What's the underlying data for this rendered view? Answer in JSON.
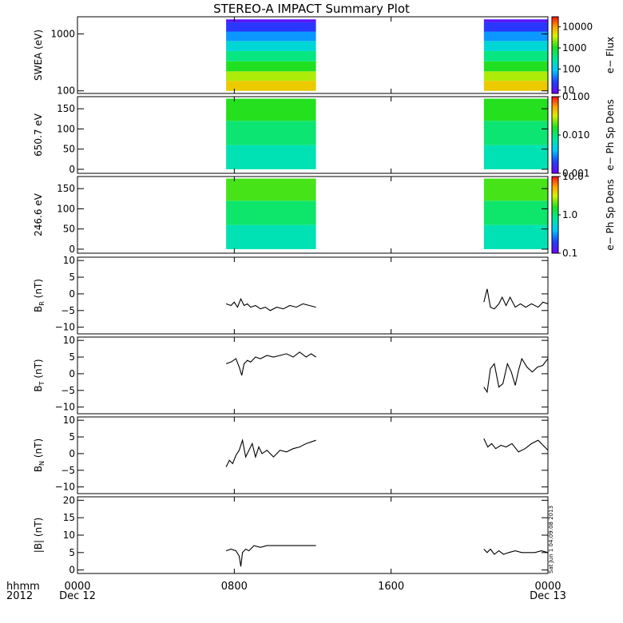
{
  "title": "STEREO-A IMPACT Summary Plot",
  "x_axis": {
    "row_label": "hhmm",
    "year_label": "2012",
    "ticks": [
      {
        "value": 0,
        "label": "0000",
        "sub": "Dec 12"
      },
      {
        "value": 480,
        "label": "0800",
        "sub": ""
      },
      {
        "value": 960,
        "label": "1600",
        "sub": ""
      },
      {
        "value": 1440,
        "label": "0000",
        "sub": "Dec 13"
      }
    ],
    "range_minutes": [
      0,
      1440
    ]
  },
  "timestamp": "Sat Jun  1 04:09:08 2013",
  "data_gaps_minutes": [
    [
      0,
      455
    ],
    [
      730,
      1244
    ]
  ],
  "chart_data": [
    {
      "type": "heatmap",
      "ylabel": "SWEA (eV)",
      "ylim": [
        90,
        2000
      ],
      "yscale": "log",
      "yticks": [
        100,
        1000
      ],
      "ytick_labels": [
        "100",
        "1000"
      ],
      "colorbar": {
        "label": "e− Flux",
        "scale": "log",
        "range": [
          7,
          30000
        ],
        "ticks": [
          10,
          100,
          1000,
          10000
        ],
        "tick_labels": [
          "10",
          "100",
          "1000",
          "10000"
        ]
      },
      "data_intervals_minutes": [
        [
          455,
          730
        ],
        [
          1244,
          1440
        ]
      ],
      "energy_bands_ev": [
        100,
        150,
        220,
        330,
        500,
        750,
        1100,
        1600,
        1800
      ],
      "flux_by_band": [
        8000,
        4000,
        1500,
        600,
        220,
        80,
        30,
        12,
        8
      ]
    },
    {
      "type": "heatmap",
      "ylabel": "650.7 eV",
      "ylim": [
        -10,
        180
      ],
      "yticks": [
        0,
        50,
        100,
        150
      ],
      "ytick_labels": [
        "0",
        "50",
        "100",
        "150"
      ],
      "colorbar": {
        "label": "e− Ph Sp Dens",
        "scale": "log",
        "range": [
          0.001,
          0.1
        ],
        "ticks": [
          0.001,
          0.01,
          0.1
        ],
        "tick_labels": [
          "0.001",
          "0.010",
          "0.100"
        ]
      },
      "data_intervals_minutes": [
        [
          455,
          730
        ],
        [
          1244,
          1440
        ]
      ],
      "pitch_profile": [
        {
          "pitch": 0,
          "value": 0.006
        },
        {
          "pitch": 60,
          "value": 0.008
        },
        {
          "pitch": 120,
          "value": 0.013
        },
        {
          "pitch": 175,
          "value": 0.02
        }
      ]
    },
    {
      "type": "heatmap",
      "ylabel": "246.6 eV",
      "ylim": [
        -10,
        180
      ],
      "yticks": [
        0,
        50,
        100,
        150
      ],
      "ytick_labels": [
        "0",
        "50",
        "100",
        "150"
      ],
      "colorbar": {
        "label": "e− Ph Sp Dens",
        "scale": "log",
        "range": [
          0.1,
          10
        ],
        "ticks": [
          0.1,
          1,
          10
        ],
        "tick_labels": [
          "0.1",
          "1.0",
          "10.0"
        ]
      },
      "data_intervals_minutes": [
        [
          455,
          730
        ],
        [
          1244,
          1440
        ]
      ],
      "pitch_profile": [
        {
          "pitch": 0,
          "value": 0.6
        },
        {
          "pitch": 60,
          "value": 0.8
        },
        {
          "pitch": 120,
          "value": 1.4
        },
        {
          "pitch": 175,
          "value": 2.4
        }
      ]
    },
    {
      "type": "line",
      "ylabel": "B",
      "ylabel_sub": "R",
      "ylabel_unit": " (nT)",
      "ylim": [
        -12,
        11
      ],
      "yticks": [
        -10,
        -5,
        0,
        5,
        10
      ],
      "ytick_labels": [
        "−10",
        "−5",
        "0",
        "5",
        "10"
      ],
      "segments": [
        {
          "x": [
            455,
            470,
            480,
            490,
            500,
            510,
            520,
            530,
            545,
            560,
            575,
            590,
            610,
            630,
            650,
            670,
            690,
            710,
            730
          ],
          "y": [
            -3,
            -3.5,
            -2.5,
            -4,
            -1.5,
            -3.5,
            -3,
            -4,
            -3.5,
            -4.5,
            -4,
            -5,
            -4,
            -4.5,
            -3.5,
            -4,
            -3,
            -3.5,
            -4
          ]
        },
        {
          "x": [
            1244,
            1254,
            1264,
            1276,
            1290,
            1300,
            1312,
            1324,
            1340,
            1356,
            1372,
            1390,
            1410,
            1425,
            1440
          ],
          "y": [
            -2.5,
            1.5,
            -4,
            -4.5,
            -3,
            -1,
            -3.5,
            -1,
            -4,
            -3,
            -4,
            -3,
            -4,
            -2.5,
            -3
          ]
        }
      ]
    },
    {
      "type": "line",
      "ylabel": "B",
      "ylabel_sub": "T",
      "ylabel_unit": " (nT)",
      "ylim": [
        -12,
        11
      ],
      "yticks": [
        -10,
        -5,
        0,
        5,
        10
      ],
      "ytick_labels": [
        "−10",
        "−5",
        "0",
        "5",
        "10"
      ],
      "segments": [
        {
          "x": [
            455,
            470,
            485,
            495,
            503,
            510,
            520,
            530,
            545,
            560,
            580,
            600,
            620,
            640,
            660,
            680,
            700,
            715,
            730
          ],
          "y": [
            3,
            3.5,
            4.5,
            2,
            -0.5,
            3,
            4,
            3.5,
            5,
            4.5,
            5.5,
            5,
            5.5,
            6,
            5,
            6.5,
            5,
            6,
            5
          ]
        },
        {
          "x": [
            1244,
            1254,
            1264,
            1276,
            1290,
            1302,
            1316,
            1328,
            1340,
            1350,
            1360,
            1376,
            1392,
            1408,
            1424,
            1440
          ],
          "y": [
            -4,
            -5.5,
            1.5,
            3,
            -4,
            -3,
            3,
            0.5,
            -3.5,
            1,
            4.5,
            2,
            0.5,
            2,
            2.5,
            4.5
          ]
        }
      ]
    },
    {
      "type": "line",
      "ylabel": "B",
      "ylabel_sub": "N",
      "ylabel_unit": " (nT)",
      "ylim": [
        -12,
        11
      ],
      "yticks": [
        -10,
        -5,
        0,
        5,
        10
      ],
      "ytick_labels": [
        "−10",
        "−5",
        "0",
        "5",
        "10"
      ],
      "segments": [
        {
          "x": [
            455,
            465,
            475,
            485,
            495,
            505,
            515,
            525,
            535,
            545,
            555,
            565,
            580,
            600,
            620,
            640,
            660,
            680,
            700,
            715,
            730
          ],
          "y": [
            -4,
            -2,
            -3,
            -0.5,
            1,
            4,
            -1,
            1,
            3,
            -1,
            2,
            0,
            1,
            -1,
            1,
            0.5,
            1.5,
            2,
            3,
            3.5,
            4
          ]
        },
        {
          "x": [
            1244,
            1256,
            1268,
            1280,
            1296,
            1312,
            1330,
            1350,
            1370,
            1390,
            1410,
            1425,
            1440
          ],
          "y": [
            4.5,
            2,
            3,
            1.5,
            2.5,
            2,
            3,
            0.5,
            1.5,
            3,
            4,
            2.5,
            1
          ]
        }
      ]
    },
    {
      "type": "line",
      "ylabel": "|B| (nT)",
      "ylim": [
        -1,
        21
      ],
      "yticks": [
        0,
        5,
        10,
        15,
        20
      ],
      "ytick_labels": [
        "0",
        "5",
        "10",
        "15",
        "20"
      ],
      "segments": [
        {
          "x": [
            455,
            470,
            485,
            495,
            500,
            505,
            515,
            525,
            540,
            560,
            580,
            600,
            620,
            640,
            660,
            680,
            700,
            715,
            730
          ],
          "y": [
            5.5,
            6,
            5.5,
            4,
            1,
            5,
            6,
            5.5,
            7,
            6.5,
            7,
            7,
            7,
            7,
            7,
            7,
            7,
            7,
            7
          ]
        },
        {
          "x": [
            1244,
            1254,
            1264,
            1276,
            1290,
            1304,
            1320,
            1340,
            1360,
            1380,
            1400,
            1420,
            1440
          ],
          "y": [
            6,
            5,
            6,
            4.5,
            5.5,
            4.5,
            5,
            5.5,
            5,
            5,
            5,
            5.5,
            5
          ]
        }
      ]
    }
  ]
}
